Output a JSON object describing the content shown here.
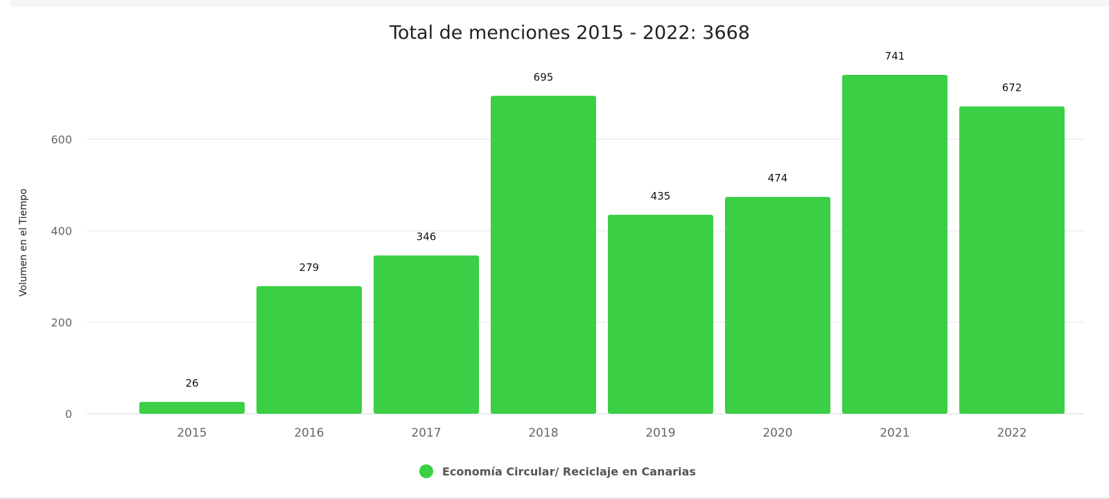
{
  "chart_data": {
    "type": "bar",
    "title": "Total de menciones 2015 - 2022: 3668",
    "ylabel": "Volumen en el Tiempo",
    "xlabel": "",
    "categories": [
      "2015",
      "2016",
      "2017",
      "2018",
      "2019",
      "2020",
      "2021",
      "2022"
    ],
    "series": [
      {
        "name": "Economía Circular/ Reciclaje en Canarias",
        "values": [
          26,
          279,
          346,
          695,
          435,
          474,
          741,
          672
        ],
        "color": "#3acf45"
      }
    ],
    "data_labels": [
      "26",
      "279",
      "346",
      "695",
      "435",
      "474",
      "741",
      "672"
    ],
    "yticks": [
      0,
      200,
      400,
      600
    ],
    "ytick_labels": [
      "0",
      "200",
      "400",
      "600"
    ],
    "ylim": [
      0,
      780
    ],
    "grid": true,
    "legend": "bottom-center"
  }
}
